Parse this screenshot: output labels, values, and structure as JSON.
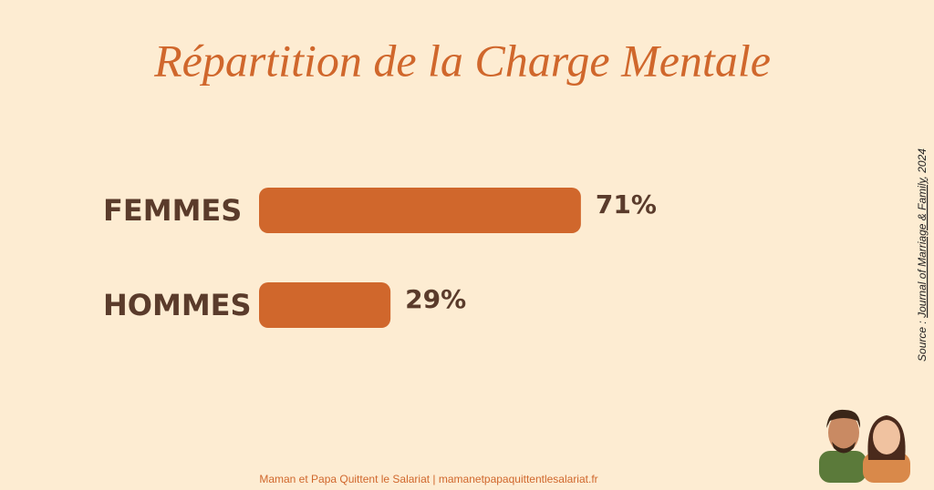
{
  "chart_data": {
    "type": "bar",
    "orientation": "horizontal",
    "title": "Répartition de la Charge Mentale",
    "categories": [
      "FEMMES",
      "HOMMES"
    ],
    "values": [
      71,
      29
    ],
    "value_labels": [
      "71%",
      "29%"
    ],
    "color": "#d0672c",
    "source_label": "Source :",
    "source_journal": "Journal of Marriage & Family",
    "source_year": ", 2024",
    "footer": "Maman et Papa Quittent le Salariat | mamanetpapaquittentlesalariat.fr"
  }
}
